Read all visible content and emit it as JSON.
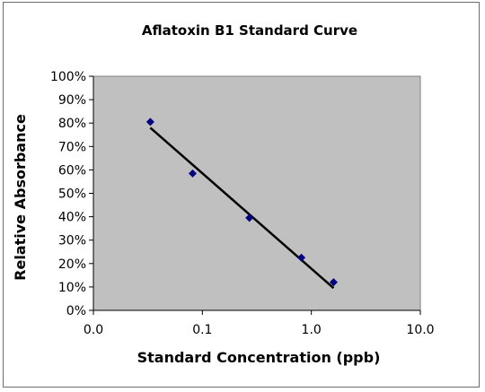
{
  "chart_data": {
    "type": "scatter",
    "title": "Aflatoxin B1 Standard Curve",
    "xlabel": "Standard Concentration (ppb)",
    "ylabel": "Relative Absorbance",
    "x_scale": "log",
    "xlim": [
      0.01,
      10
    ],
    "ylim": [
      0,
      1
    ],
    "x_tick_labels": [
      "0.0",
      "0.1",
      "1.0",
      "10.0"
    ],
    "x_tick_values": [
      0.01,
      0.1,
      1,
      10
    ],
    "y_tick_labels": [
      "0%",
      "10%",
      "20%",
      "30%",
      "40%",
      "50%",
      "60%",
      "70%",
      "80%",
      "90%",
      "100%"
    ],
    "y_tick_values": [
      0,
      0.1,
      0.2,
      0.3,
      0.4,
      0.5,
      0.6,
      0.7,
      0.8,
      0.9,
      1.0
    ],
    "grid": false,
    "legend": "none",
    "series": [
      {
        "x": [
          0.0333,
          0.0814,
          0.27,
          0.81,
          1.6
        ],
        "y": [
          0.805,
          0.585,
          0.395,
          0.225,
          0.12
        ]
      }
    ],
    "trendline": {
      "x_start": 0.0333,
      "x_end": 1.6,
      "y_start": 0.78,
      "y_end": 0.095
    },
    "colors": {
      "plot_area": "#c0c0c0",
      "marker": "#000080",
      "trendline": "#000000"
    }
  }
}
